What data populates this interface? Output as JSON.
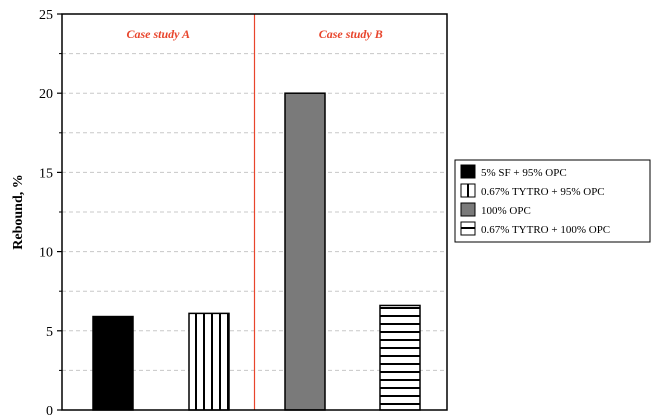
{
  "chart_data": {
    "type": "bar",
    "ylabel": "Rebound, %",
    "ylim": [
      0,
      25
    ],
    "yticks": [
      0,
      5,
      10,
      15,
      20,
      25
    ],
    "grid": true,
    "legend_position": "right",
    "panels": [
      {
        "label": "Case study A",
        "label_color": "#e8452c"
      },
      {
        "label": "Case study B",
        "label_color": "#e8452c"
      }
    ],
    "series": [
      {
        "name": "5% SF + 95% OPC",
        "value": 5.9,
        "panel": 0,
        "pattern": "solid-black"
      },
      {
        "name": "0.67% TYTRO + 95% OPC",
        "value": 6.1,
        "panel": 0,
        "pattern": "vertical-stripes"
      },
      {
        "name": "100% OPC",
        "value": 20.0,
        "panel": 1,
        "pattern": "solid-gray"
      },
      {
        "name": "0.67% TYTRO + 100% OPC",
        "value": 6.6,
        "panel": 1,
        "pattern": "horizontal-stripes"
      }
    ],
    "colors": {
      "divider": "#e8452c",
      "gray_fill": "#7a7a7a",
      "black_fill": "#000000"
    }
  }
}
